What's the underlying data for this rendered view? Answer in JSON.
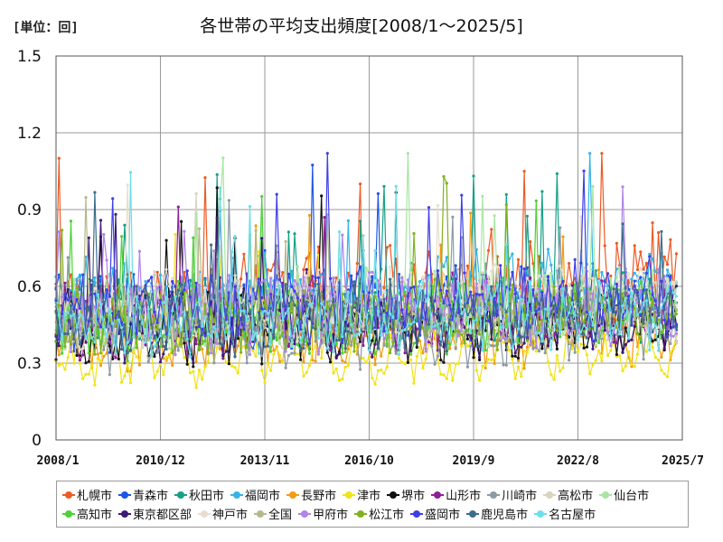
{
  "unit_label": "[単位：回]",
  "chart_data": {
    "type": "line",
    "title": "各世帯の平均支出頻度[2008/1～2025/5]",
    "xlabel": "",
    "ylabel": "",
    "ylim": [
      0,
      1.5
    ],
    "yticks": [
      "0",
      "0.3",
      "0.6",
      "0.9",
      "1.2",
      "1.5"
    ],
    "xticks": [
      "2008/1",
      "2010/12",
      "2013/11",
      "2016/10",
      "2019/9",
      "2022/8",
      "2025/7"
    ],
    "x_range": [
      "2008/1",
      "2025/7"
    ],
    "grid": true,
    "legend_position": "bottom",
    "series": [
      {
        "name": "札幌市",
        "color": "#ee5a24",
        "base": 0.56,
        "amp": 0.14
      },
      {
        "name": "青森市",
        "color": "#1a56e8",
        "base": 0.5,
        "amp": 0.12
      },
      {
        "name": "秋田市",
        "color": "#16a085",
        "base": 0.5,
        "amp": 0.12
      },
      {
        "name": "福岡市",
        "color": "#35b4e8",
        "base": 0.55,
        "amp": 0.12
      },
      {
        "name": "長野市",
        "color": "#f39c12",
        "base": 0.38,
        "amp": 0.09
      },
      {
        "name": "津市",
        "color": "#f1e31a",
        "base": 0.3,
        "amp": 0.06
      },
      {
        "name": "堺市",
        "color": "#111111",
        "base": 0.42,
        "amp": 0.1
      },
      {
        "name": "山形市",
        "color": "#8e1f9b",
        "base": 0.47,
        "amp": 0.12
      },
      {
        "name": "川崎市",
        "color": "#8c9aa6",
        "base": 0.4,
        "amp": 0.1
      },
      {
        "name": "高松市",
        "color": "#d8d4bd",
        "base": 0.5,
        "amp": 0.12
      },
      {
        "name": "仙台市",
        "color": "#a8e6a1",
        "base": 0.5,
        "amp": 0.12
      },
      {
        "name": "高知市",
        "color": "#4cd137",
        "base": 0.46,
        "amp": 0.11
      },
      {
        "name": "東京都区部",
        "color": "#3d1a78",
        "base": 0.44,
        "amp": 0.1
      },
      {
        "name": "神戸市",
        "color": "#e8ddd0",
        "base": 0.52,
        "amp": 0.12
      },
      {
        "name": "全国",
        "color": "#b5b88a",
        "base": 0.46,
        "amp": 0.06
      },
      {
        "name": "甲府市",
        "color": "#b084e8",
        "base": 0.48,
        "amp": 0.12
      },
      {
        "name": "松江市",
        "color": "#7fb21e",
        "base": 0.46,
        "amp": 0.11
      },
      {
        "name": "盛岡市",
        "color": "#3f3fe8",
        "base": 0.52,
        "amp": 0.12
      },
      {
        "name": "鹿児島市",
        "color": "#3e6d8a",
        "base": 0.46,
        "amp": 0.11
      },
      {
        "name": "名古屋市",
        "color": "#6be0ea",
        "base": 0.44,
        "amp": 0.1
      }
    ]
  }
}
